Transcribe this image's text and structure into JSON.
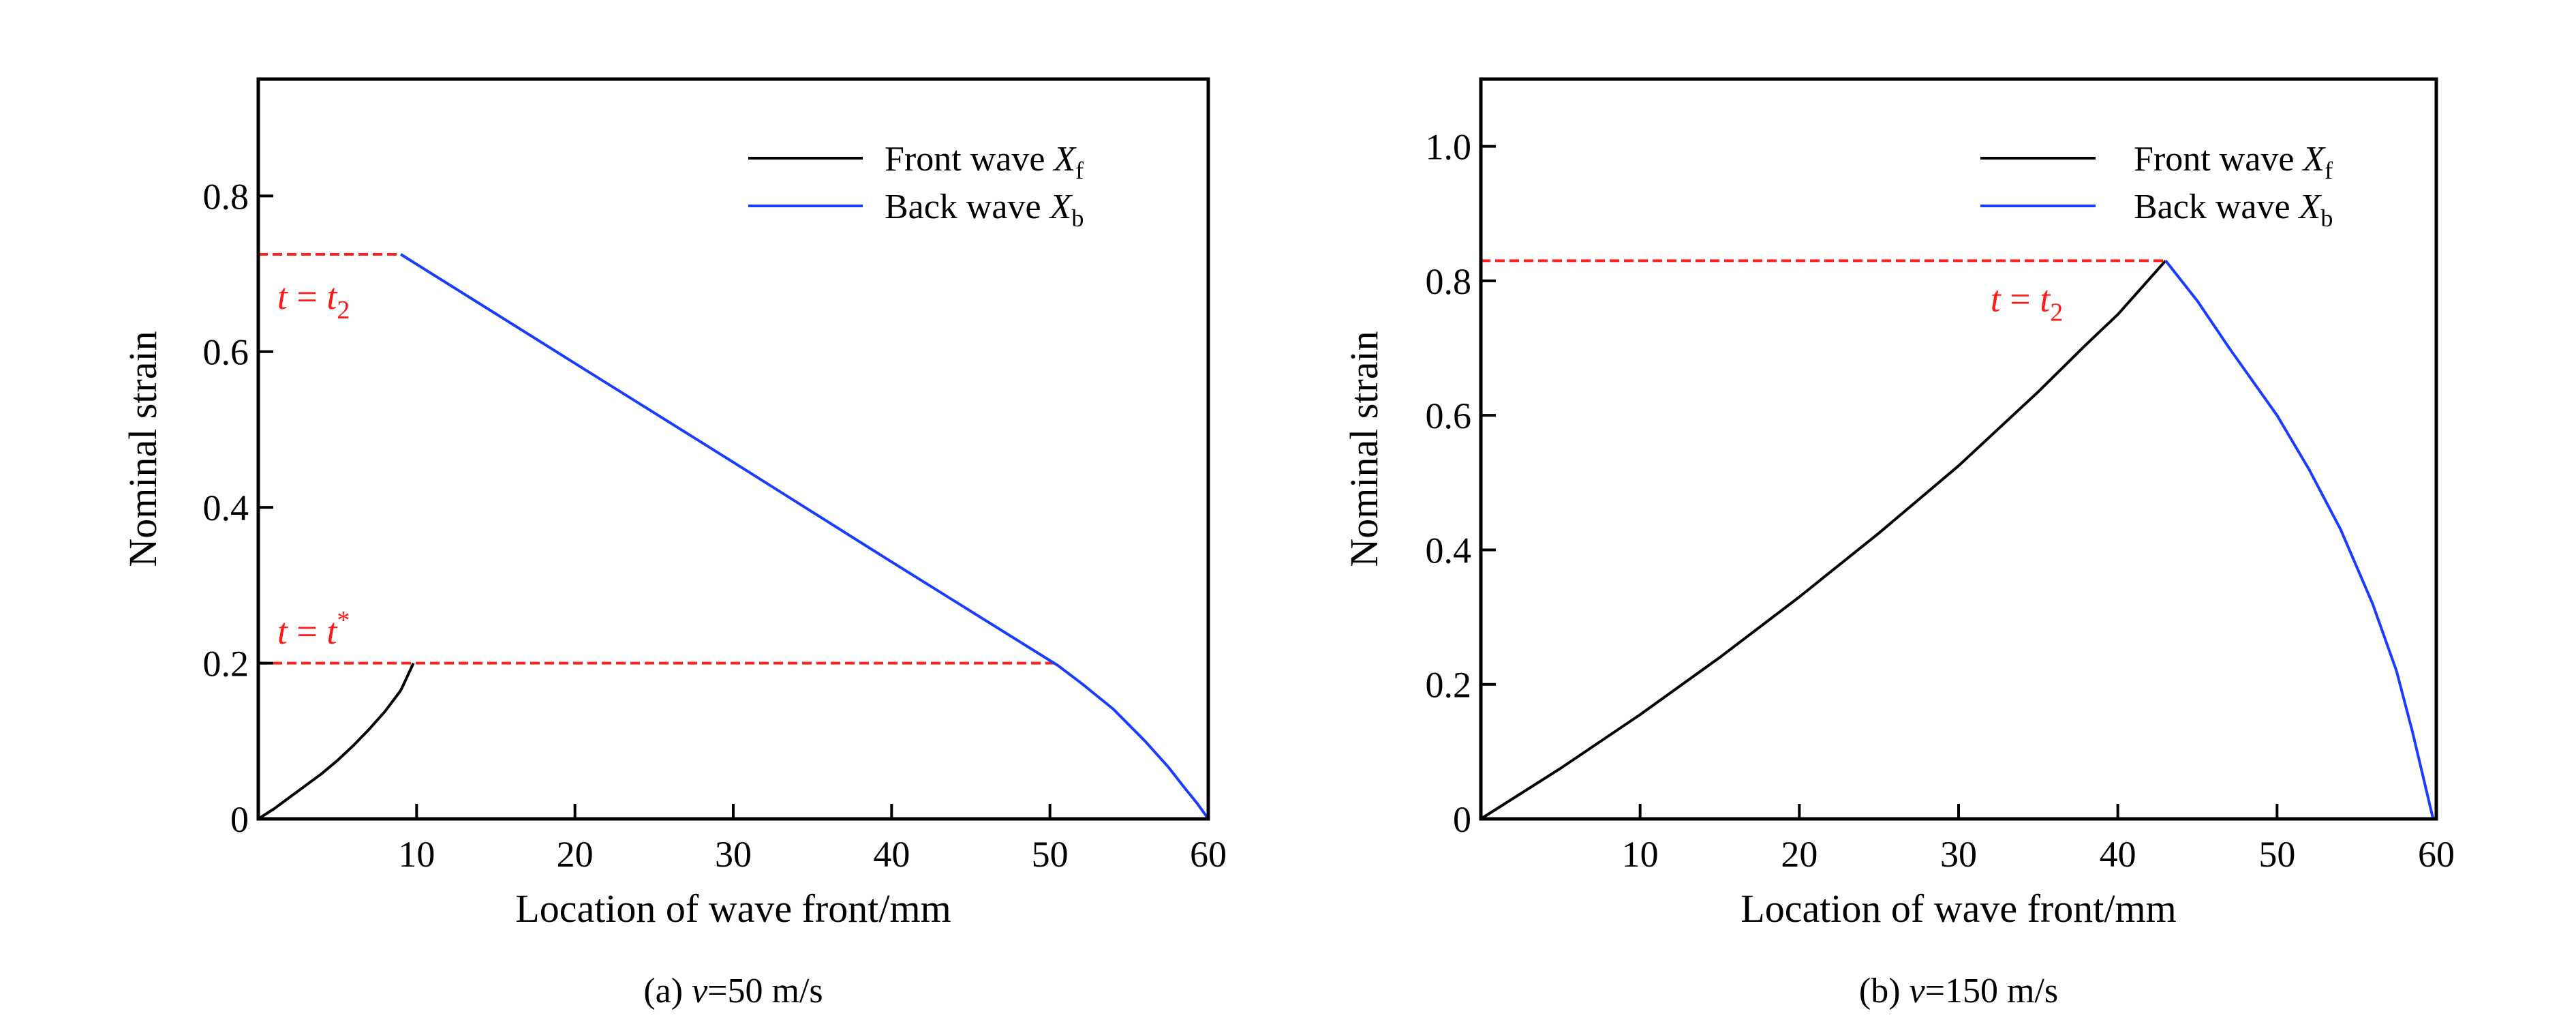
{
  "colors": {
    "front": "#000000",
    "back": "#1a3cff",
    "ref": "#ff2020"
  },
  "chart_data": [
    {
      "type": "line",
      "caption": {
        "prefix": "(a) ",
        "var": "v",
        "suffix": "=50 m/s"
      },
      "xlabel": "Location of wave front/mm",
      "ylabel": "Nominal strain",
      "xlim": [
        0,
        60
      ],
      "ylim": [
        0,
        0.95
      ],
      "xticks": [
        10,
        20,
        30,
        40,
        50,
        60
      ],
      "xtick_labels": [
        "10",
        "20",
        "30",
        "40",
        "50",
        "60"
      ],
      "yticks": [
        0,
        0.2,
        0.4,
        0.6,
        0.8
      ],
      "ytick_labels": [
        "0",
        "0.2",
        "0.4",
        "0.6",
        "0.8"
      ],
      "legend_placement": "top-right",
      "series": [
        {
          "name": "Front wave",
          "symbol": "X",
          "sub": "f",
          "color_key": "front",
          "x": [
            0,
            1,
            2,
            3,
            4,
            5,
            6,
            7,
            8,
            9,
            9.8
          ],
          "y": [
            0,
            0.013,
            0.028,
            0.043,
            0.058,
            0.075,
            0.094,
            0.115,
            0.138,
            0.165,
            0.2
          ]
        },
        {
          "name": "Back wave",
          "symbol": "X",
          "sub": "b",
          "color_key": "back",
          "x": [
            9,
            20,
            30,
            40,
            50.5,
            52,
            54,
            56,
            57.5,
            58.5,
            59.3,
            60
          ],
          "y": [
            0.725,
            0.585,
            0.458,
            0.33,
            0.197,
            0.174,
            0.141,
            0.1,
            0.066,
            0.04,
            0.02,
            0
          ]
        }
      ],
      "reference_lines": [
        {
          "y": 0.725,
          "x": [
            0,
            9
          ],
          "label": {
            "t": "t",
            "eq": " = ",
            "rhs": "t",
            "sup": "",
            "sub": "2"
          },
          "label_at": [
            1.2,
            0.655
          ]
        },
        {
          "y": 0.2,
          "x": [
            0,
            50.5
          ],
          "label": {
            "t": "t",
            "eq": " = ",
            "rhs": "t",
            "sup": "*",
            "sub": ""
          },
          "label_at": [
            1.2,
            0.225
          ]
        }
      ]
    },
    {
      "type": "line",
      "caption": {
        "prefix": "(b) ",
        "var": "v",
        "suffix": "=150 m/s"
      },
      "xlabel": "Location of wave front/mm",
      "ylabel": "Nominal strain",
      "xlim": [
        0,
        60
      ],
      "ylim": [
        0,
        1.1
      ],
      "xticks": [
        10,
        20,
        30,
        40,
        50,
        60
      ],
      "xtick_labels": [
        "10",
        "20",
        "30",
        "40",
        "50",
        "60"
      ],
      "yticks": [
        0,
        0.2,
        0.4,
        0.6,
        0.8,
        1.0
      ],
      "ytick_labels": [
        "0",
        "0.2",
        "0.4",
        "0.6",
        "0.8",
        "1.0"
      ],
      "legend_placement": "top-right",
      "series": [
        {
          "name": "Front wave",
          "symbol": "X",
          "sub": "f",
          "color_key": "front",
          "x": [
            0,
            5,
            10,
            15,
            20,
            25,
            30,
            35,
            38,
            40,
            43
          ],
          "y": [
            0,
            0.075,
            0.155,
            0.24,
            0.33,
            0.425,
            0.525,
            0.635,
            0.705,
            0.75,
            0.83
          ]
        },
        {
          "name": "Back wave",
          "symbol": "X",
          "sub": "b",
          "color_key": "back",
          "x": [
            43,
            45,
            47,
            50,
            52,
            54,
            56,
            57.5,
            58.5,
            59.2,
            59.8
          ],
          "y": [
            0.83,
            0.77,
            0.7,
            0.6,
            0.52,
            0.43,
            0.32,
            0.22,
            0.13,
            0.06,
            0
          ]
        }
      ],
      "reference_lines": [
        {
          "y": 0.83,
          "x": [
            0,
            43
          ],
          "label": {
            "t": "t",
            "eq": " = ",
            "rhs": "t",
            "sup": "",
            "sub": "2"
          },
          "label_at": [
            32,
            0.755
          ]
        }
      ]
    }
  ]
}
